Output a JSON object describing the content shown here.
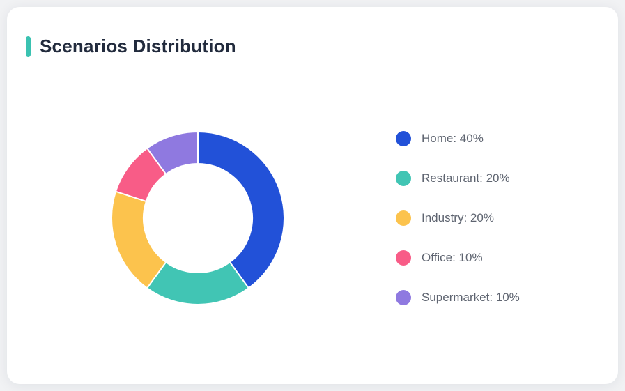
{
  "page": {
    "background": "#f1f2f4"
  },
  "card": {
    "title": "Scenarios Distribution",
    "accent_color": "#3ac2b1"
  },
  "chart_data": {
    "type": "pie",
    "subtype": "donut",
    "title": "Scenarios Distribution",
    "labels": [
      "Home",
      "Restaurant",
      "Industry",
      "Office",
      "Supermarket"
    ],
    "values": [
      40,
      20,
      20,
      10,
      10
    ],
    "unit": "%",
    "colors": [
      "#2251d8",
      "#41c5b4",
      "#fcc34d",
      "#f85c87",
      "#8f79e0"
    ],
    "legend_entries": [
      "Home: 40%",
      "Restaurant: 20%",
      "Industry: 20%",
      "Office: 10%",
      "Supermarket: 10%"
    ],
    "legend_position": "right",
    "start_angle_deg": 0,
    "clockwise": true,
    "outer_radius_px": 124,
    "inner_radius_px": 78,
    "slice_border_color": "#ffffff",
    "slice_border_width": 2
  }
}
